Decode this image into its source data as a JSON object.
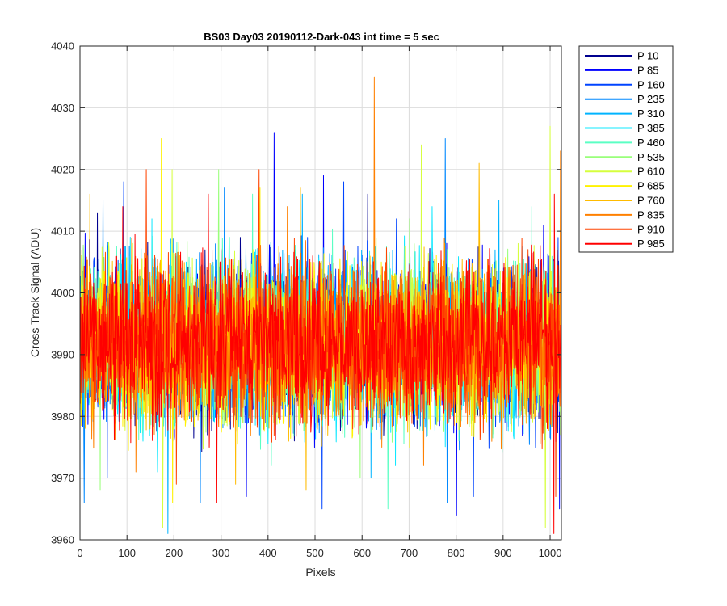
{
  "chart_data": {
    "type": "line",
    "title": "BS03 Day03 20190112-Dark-043 int time = 5 sec",
    "xlabel": "Pixels",
    "ylabel": "Cross Track Signal (ADU)",
    "xlim": [
      0,
      1024
    ],
    "ylim": [
      3960,
      4040
    ],
    "xticks": [
      0,
      100,
      200,
      300,
      400,
      500,
      600,
      700,
      800,
      900,
      1000
    ],
    "yticks": [
      3960,
      3970,
      3980,
      3990,
      4000,
      4010,
      4020,
      4030,
      4040
    ],
    "grid": true,
    "legend_position": "outside-top-right",
    "noise_profile": {
      "mean": 3992,
      "typical_min": 3974,
      "typical_max": 4012
    },
    "series": [
      {
        "name": "P 10",
        "color": "#00008f",
        "peaks": [
          [
            36,
            4013
          ],
          [
            611,
            4016
          ]
        ],
        "dips": [
          [
            270,
            3977
          ],
          [
            455,
            3976
          ]
        ]
      },
      {
        "name": "P 85",
        "color": "#0000ff",
        "peaks": [
          [
            412,
            4026
          ],
          [
            517,
            4019
          ],
          [
            985,
            4011
          ]
        ],
        "dips": [
          [
            353,
            3967
          ],
          [
            800,
            3964
          ],
          [
            1019,
            3965
          ]
        ]
      },
      {
        "name": "P 160",
        "color": "#0044ff",
        "peaks": [
          [
            92,
            4018
          ],
          [
            560,
            4018
          ],
          [
            672,
            4012
          ]
        ],
        "dips": [
          [
            57,
            3970
          ],
          [
            514,
            3965
          ],
          [
            836,
            3967
          ]
        ]
      },
      {
        "name": "P 235",
        "color": "#0088ff",
        "peaks": [
          [
            776,
            4025
          ],
          [
            306,
            4017
          ],
          [
            48,
            4015
          ]
        ],
        "dips": [
          [
            8,
            3966
          ],
          [
            255,
            3966
          ],
          [
            780,
            3966
          ]
        ]
      },
      {
        "name": "P 310",
        "color": "#00b4ff",
        "peaks": [
          [
            472,
            4016
          ],
          [
            890,
            4015
          ]
        ],
        "dips": [
          [
            186,
            3961
          ],
          [
            618,
            3970
          ]
        ]
      },
      {
        "name": "P 385",
        "color": "#0fe8ff",
        "peaks": [
          [
            152,
            4012
          ],
          [
            748,
            4014
          ]
        ],
        "dips": [
          [
            164,
            3971
          ],
          [
            670,
            3972
          ]
        ]
      },
      {
        "name": "P 460",
        "color": "#5bffc4",
        "peaks": [
          [
            366,
            4016
          ],
          [
            960,
            4014
          ]
        ],
        "dips": [
          [
            406,
            3972
          ],
          [
            654,
            3965
          ]
        ]
      },
      {
        "name": "P 535",
        "color": "#99ff7a",
        "peaks": [
          [
            294,
            4020
          ],
          [
            700,
            4012
          ]
        ],
        "dips": [
          [
            42,
            3968
          ],
          [
            595,
            3970
          ]
        ]
      },
      {
        "name": "P 610",
        "color": "#d6ff3d",
        "peaks": [
          [
            999,
            4027
          ],
          [
            195,
            4020
          ],
          [
            725,
            4024
          ]
        ],
        "dips": [
          [
            175,
            3962
          ],
          [
            989,
            3962
          ]
        ]
      },
      {
        "name": "P 685",
        "color": "#fff200",
        "peaks": [
          [
            172,
            4025
          ],
          [
            382,
            4017
          ]
        ],
        "dips": [
          [
            196,
            3966
          ],
          [
            700,
            3975
          ]
        ]
      },
      {
        "name": "P 760",
        "color": "#ffbb00",
        "peaks": [
          [
            848,
            4021
          ],
          [
            468,
            4017
          ],
          [
            20,
            4016
          ]
        ],
        "dips": [
          [
            330,
            3969
          ],
          [
            480,
            3968
          ]
        ]
      },
      {
        "name": "P 835",
        "color": "#ff8000",
        "peaks": [
          [
            625,
            4035
          ],
          [
            1021,
            4023
          ],
          [
            440,
            4014
          ]
        ],
        "dips": [
          [
            118,
            3971
          ],
          [
            730,
            3972
          ]
        ]
      },
      {
        "name": "P 910",
        "color": "#ff4400",
        "peaks": [
          [
            380,
            4020
          ],
          [
            140,
            4020
          ]
        ],
        "dips": [
          [
            204,
            3969
          ],
          [
            1011,
            3967
          ]
        ]
      },
      {
        "name": "P 985",
        "color": "#ff0000",
        "peaks": [
          [
            272,
            4016
          ],
          [
            1008,
            4016
          ],
          [
            90,
            4014
          ]
        ],
        "dips": [
          [
            290,
            3966
          ],
          [
            1007,
            3961
          ]
        ]
      }
    ]
  }
}
